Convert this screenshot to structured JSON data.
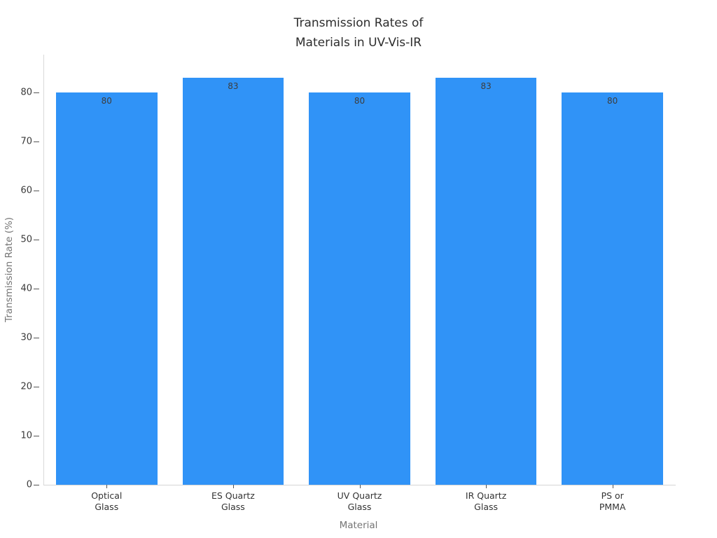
{
  "chart_data": {
    "type": "bar",
    "title": "Transmission Rates of\nMaterials in UV-Vis-IR",
    "xlabel": "Material",
    "ylabel": "Transmission Rate (%)",
    "categories": [
      "Optical\nGlass",
      "ES Quartz\nGlass",
      "UV Quartz\nGlass",
      "IR Quartz\nGlass",
      "PS or\nPMMA"
    ],
    "values": [
      80,
      83,
      80,
      83,
      80
    ],
    "bar_labels": [
      "80",
      "83",
      "80",
      "83",
      "80"
    ],
    "yticks": [
      0,
      10,
      20,
      30,
      40,
      50,
      60,
      70,
      80
    ],
    "ylim": [
      0,
      87.7
    ],
    "grid": false,
    "legend": "none",
    "bar_color": "#3093f7",
    "label_position": "inside-top"
  },
  "colors": {
    "background": "#ffffff",
    "bar": "#3093f7",
    "title_text": "#2d2d2d",
    "tick_text": "#3a3a3a",
    "axis_title_text": "#757575",
    "bar_label_text": "#3d3d3d",
    "spine": "#d9d9d9",
    "tick_mark": "#555555"
  }
}
